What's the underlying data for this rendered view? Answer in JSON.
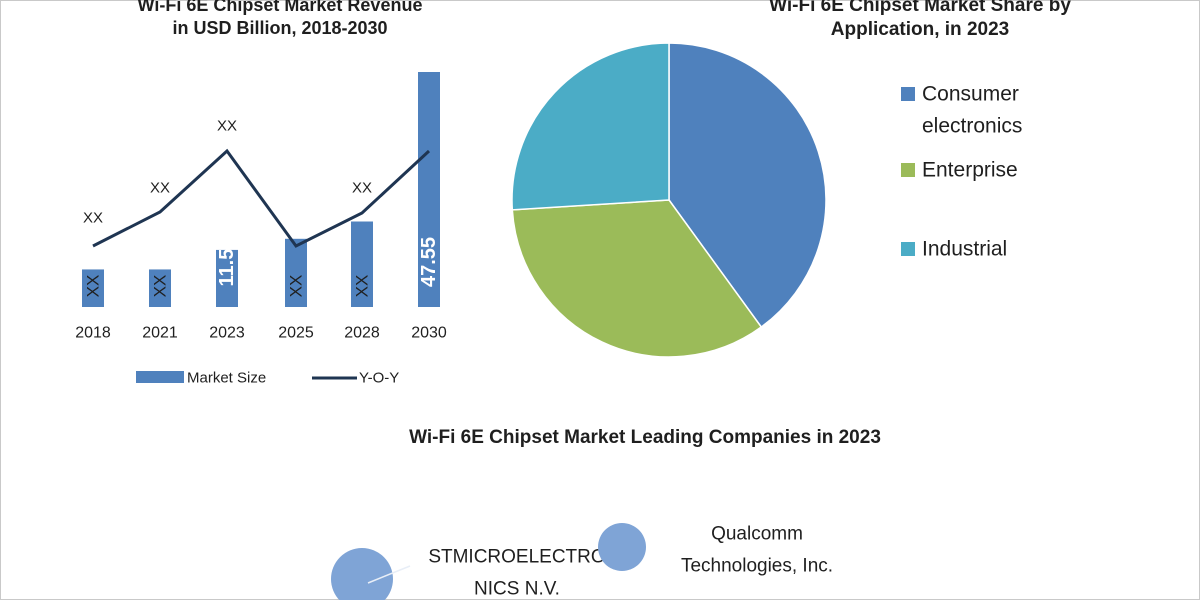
{
  "colors": {
    "bar": "#4f81bd",
    "line": "#1f3552",
    "consumer": "#4f81bd",
    "enterprise": "#9bbb59",
    "industrial": "#4bacc6",
    "bubble": "#7fa4d6"
  },
  "chart_data": [
    {
      "type": "bar",
      "title": "Wi-Fi 6E Chipset Market Revenue in USD Billion, 2018-2030",
      "title_lines": [
        "Wi-Fi 6E Chipset Market Revenue",
        "in USD Billion, 2018-2030"
      ],
      "categories": [
        "2018",
        "2021",
        "2023",
        "2025",
        "2028",
        "2030"
      ],
      "series": [
        {
          "name": "Market Size",
          "type": "bar",
          "values": [
            7.6,
            7.6,
            11.55,
            13.8,
            17.3,
            47.55
          ],
          "labels": [
            "XX",
            "XX",
            "11.55",
            "XX",
            "XX",
            "47.55"
          ]
        },
        {
          "name": "Y-O-Y",
          "type": "line",
          "labels": [
            "XX",
            "XX",
            "XX",
            "",
            "XX",
            ""
          ]
        }
      ],
      "legend_position": "bottom"
    },
    {
      "type": "pie",
      "title": "Wi-Fi 6E Chipset Market Share by Application, in 2023",
      "title_lines": [
        "Wi-Fi 6E Chipset Market Share by",
        "Application, in 2023"
      ],
      "slices": [
        {
          "label_lines": [
            "Consumer",
            "electronics"
          ],
          "value": 40
        },
        {
          "label_lines": [
            "Enterprise"
          ],
          "value": 34
        },
        {
          "label_lines": [
            "Industrial"
          ],
          "value": 26
        }
      ],
      "legend_position": "right"
    },
    {
      "type": "scatter",
      "title": "Wi-Fi 6E Chipset Market Leading Companies in 2023",
      "bubbles": [
        {
          "label_lines": [
            "STMICROELECTRO",
            "NICS N.V."
          ]
        },
        {
          "label_lines": [
            "Qualcomm",
            "Technologies, Inc."
          ]
        }
      ]
    }
  ]
}
